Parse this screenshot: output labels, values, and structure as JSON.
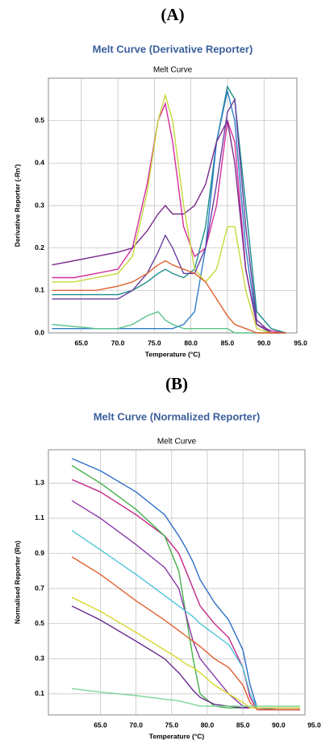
{
  "chart_data": [
    {
      "type": "line",
      "panel_label": "(A)",
      "title": "Melt Curve (Derivative Reporter)",
      "subtitle": "Melt Curve",
      "x_label": "Temperature (°C)",
      "y_label": "Derivative Reporter (-Rn')",
      "xlim": [
        60.5,
        94.5
      ],
      "ylim": [
        0,
        0.6
      ],
      "xticks": [
        {
          "value": 65,
          "label": "65.0"
        },
        {
          "value": 70,
          "label": "70.0"
        },
        {
          "value": 75,
          "label": "75.0"
        },
        {
          "value": 80,
          "label": "80.0"
        },
        {
          "value": 85,
          "label": "85.0"
        },
        {
          "value": 90,
          "label": "90.0"
        },
        {
          "value": 95,
          "label": "95.0"
        }
      ],
      "yticks": [
        {
          "value": 0,
          "label": "0.0"
        },
        0.1,
        0.2,
        0.3,
        0.4,
        0.5
      ],
      "grid": true,
      "x": [
        61,
        64,
        67,
        70,
        72,
        74,
        75.5,
        76.5,
        77.5,
        79,
        80.5,
        82,
        83.5,
        85,
        86,
        87.5,
        89,
        91,
        93
      ],
      "series": [
        {
          "color": "#d62d9d",
          "values": [
            0.13,
            0.13,
            0.14,
            0.15,
            0.2,
            0.35,
            0.5,
            0.54,
            0.45,
            0.25,
            0.18,
            0.2,
            0.3,
            0.5,
            0.45,
            0.15,
            0.02,
            0.005,
            0
          ]
        },
        {
          "color": "#1c8c8c",
          "values": [
            0.09,
            0.09,
            0.09,
            0.09,
            0.1,
            0.12,
            0.14,
            0.15,
            0.14,
            0.13,
            0.15,
            0.25,
            0.45,
            0.58,
            0.55,
            0.3,
            0.05,
            0.01,
            0
          ]
        },
        {
          "color": "#2e7fc7",
          "values": [
            0.01,
            0.01,
            0.01,
            0.01,
            0.01,
            0.01,
            0.01,
            0.01,
            0.01,
            0.02,
            0.05,
            0.2,
            0.45,
            0.57,
            0.5,
            0.2,
            0.02,
            0,
            0
          ]
        },
        {
          "color": "#7a2a8c",
          "values": [
            0.16,
            0.17,
            0.18,
            0.19,
            0.2,
            0.24,
            0.28,
            0.3,
            0.28,
            0.28,
            0.3,
            0.35,
            0.45,
            0.5,
            0.4,
            0.15,
            0.02,
            0,
            0
          ]
        },
        {
          "color": "#58c28a",
          "values": [
            0.02,
            0.015,
            0.01,
            0.01,
            0.02,
            0.04,
            0.05,
            0.03,
            0.02,
            0.01,
            0.01,
            0.01,
            0.01,
            0.01,
            0,
            0,
            0,
            0,
            0
          ]
        },
        {
          "color": "#c8d83a",
          "values": [
            0.12,
            0.12,
            0.13,
            0.14,
            0.18,
            0.33,
            0.5,
            0.56,
            0.5,
            0.3,
            0.15,
            0.12,
            0.15,
            0.25,
            0.25,
            0.1,
            0.01,
            0,
            0
          ]
        },
        {
          "color": "#6b3fa0",
          "values": [
            0.08,
            0.08,
            0.08,
            0.08,
            0.1,
            0.14,
            0.19,
            0.23,
            0.2,
            0.14,
            0.14,
            0.2,
            0.35,
            0.52,
            0.55,
            0.25,
            0.03,
            0,
            0
          ]
        },
        {
          "color": "#e06030",
          "values": [
            0.1,
            0.1,
            0.1,
            0.11,
            0.12,
            0.14,
            0.16,
            0.17,
            0.16,
            0.15,
            0.14,
            0.12,
            0.08,
            0.04,
            0.02,
            0.01,
            0,
            0,
            0
          ]
        }
      ]
    },
    {
      "type": "line",
      "panel_label": "(B)",
      "title": "Melt Curve (Normalized Reporter)",
      "subtitle": "Melt Curve",
      "x_label": "Temperature (°C)",
      "y_label": "Normalised Reporter (Rn)",
      "xlim": [
        57.7,
        93.7
      ],
      "ylim": [
        -0.02,
        1.49
      ],
      "xticks": [
        {
          "value": 65,
          "label": "65.0"
        },
        {
          "value": 70,
          "label": "70.0"
        },
        {
          "value": 75,
          "label": "75.0"
        },
        {
          "value": 80,
          "label": "80.0"
        },
        {
          "value": 85,
          "label": "85.0"
        },
        {
          "value": 90,
          "label": "90.0"
        },
        {
          "value": 95,
          "label": "95.0"
        }
      ],
      "yticks": [
        0.1,
        0.3,
        0.5,
        0.7,
        0.9,
        1.1,
        1.3
      ],
      "grid": true,
      "x": [
        61,
        65,
        70,
        74,
        76,
        77,
        78,
        79,
        81,
        83,
        85,
        86,
        87,
        90,
        93
      ],
      "series": [
        {
          "color": "#2e6fc7",
          "values": [
            1.44,
            1.37,
            1.25,
            1.12,
            1.0,
            0.93,
            0.85,
            0.75,
            0.62,
            0.52,
            0.35,
            0.15,
            0.02,
            0.01,
            0.01
          ]
        },
        {
          "color": "#c2288a",
          "values": [
            1.32,
            1.25,
            1.12,
            1.0,
            0.9,
            0.8,
            0.7,
            0.6,
            0.5,
            0.42,
            0.25,
            0.08,
            0.01,
            0.01,
            0.01
          ]
        },
        {
          "color": "#46b04a",
          "values": [
            1.4,
            1.3,
            1.15,
            1.0,
            0.8,
            0.55,
            0.3,
            0.1,
            0.03,
            0.02,
            0.02,
            0.02,
            0.02,
            0.02,
            0.02
          ]
        },
        {
          "color": "#8a3aa8",
          "values": [
            1.2,
            1.1,
            0.95,
            0.82,
            0.7,
            0.55,
            0.4,
            0.3,
            0.2,
            0.1,
            0.03,
            0.02,
            0.02,
            0.02,
            0.02
          ]
        },
        {
          "color": "#4fc3d8",
          "values": [
            1.03,
            0.92,
            0.78,
            0.66,
            0.6,
            0.57,
            0.54,
            0.5,
            0.44,
            0.38,
            0.25,
            0.1,
            0.02,
            0.02,
            0.02
          ]
        },
        {
          "color": "#e06030",
          "values": [
            0.88,
            0.78,
            0.63,
            0.52,
            0.46,
            0.43,
            0.4,
            0.37,
            0.3,
            0.25,
            0.15,
            0.05,
            0.01,
            0.01,
            0.01
          ]
        },
        {
          "color": "#6a2a90",
          "values": [
            0.6,
            0.52,
            0.4,
            0.3,
            0.22,
            0.17,
            0.12,
            0.08,
            0.04,
            0.03,
            0.02,
            0.02,
            0.02,
            0.02,
            0.02
          ]
        },
        {
          "color": "#7ed69a",
          "values": [
            0.13,
            0.11,
            0.09,
            0.07,
            0.06,
            0.05,
            0.04,
            0.03,
            0.03,
            0.03,
            0.03,
            0.03,
            0.03,
            0.03,
            0.03
          ]
        },
        {
          "color": "#d8d830",
          "values": [
            0.65,
            0.57,
            0.45,
            0.35,
            0.3,
            0.27,
            0.25,
            0.22,
            0.15,
            0.1,
            0.05,
            0.02,
            0.02,
            0.02,
            0.02
          ]
        }
      ]
    }
  ]
}
